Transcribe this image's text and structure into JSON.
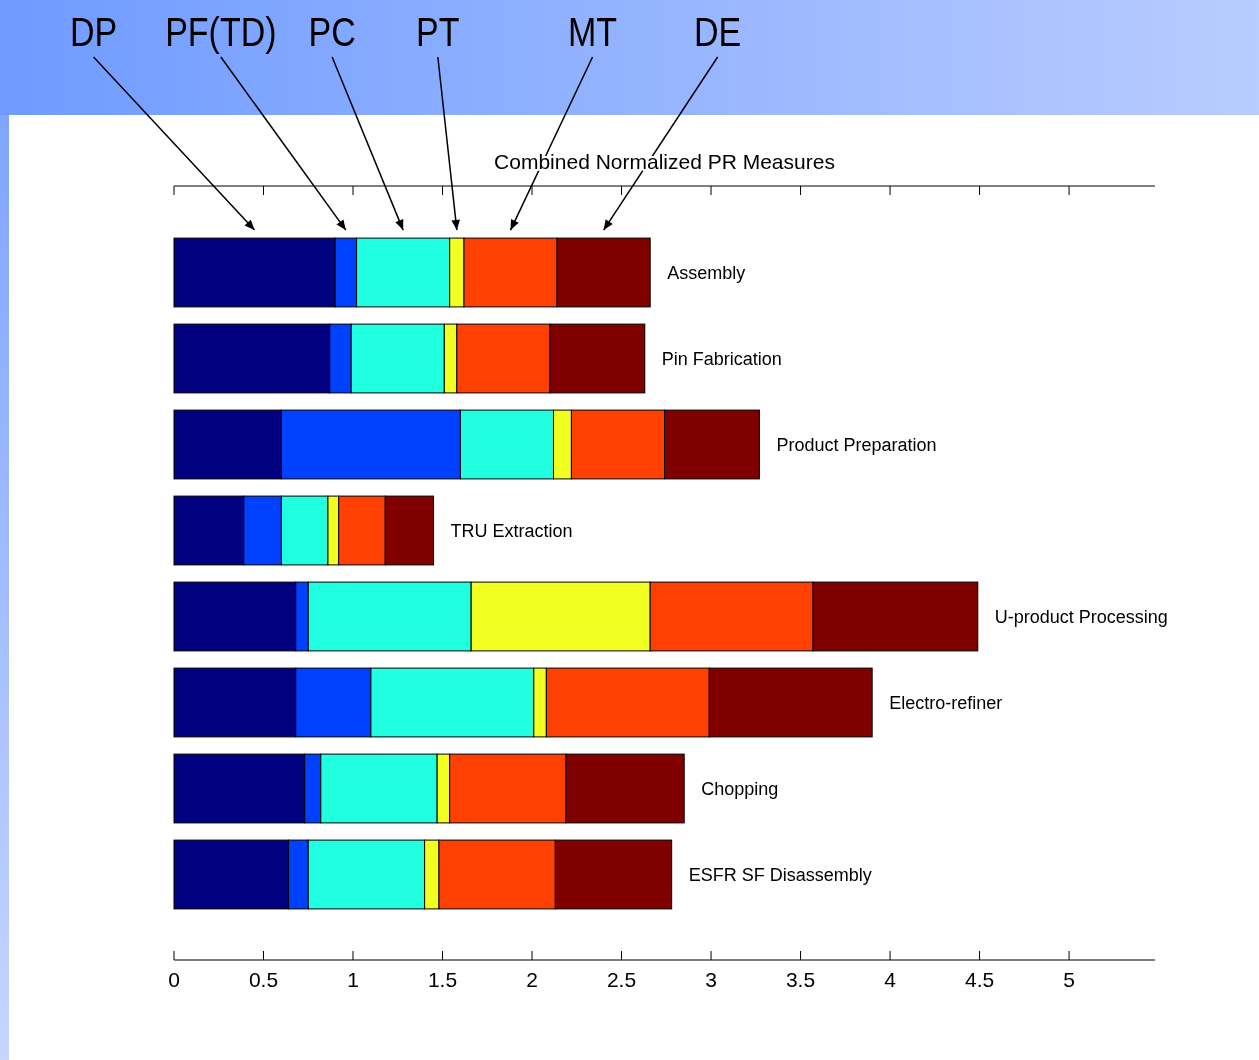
{
  "chart_data": {
    "type": "bar",
    "orientation": "horizontal",
    "stacked": true,
    "title": "Combined Normalized PR Measures",
    "legend": "top",
    "categories": [
      "Assembly",
      "Pin Fabrication",
      "Product Preparation",
      "TRU Extraction",
      "U-product Processing",
      "Electro-refiner",
      "Chopping",
      "ESFR SF Disassembly"
    ],
    "series": [
      {
        "name": "DP",
        "color": "#000080",
        "values": [
          0.9,
          0.87,
          0.6,
          0.39,
          0.68,
          0.68,
          0.73,
          0.64
        ]
      },
      {
        "name": "PF(TD)",
        "color": "#0040ff",
        "values": [
          0.12,
          0.12,
          1.0,
          0.21,
          0.07,
          0.42,
          0.09,
          0.11
        ]
      },
      {
        "name": "PC",
        "color": "#20ffe0",
        "values": [
          0.52,
          0.52,
          0.52,
          0.26,
          0.91,
          0.91,
          0.65,
          0.65
        ]
      },
      {
        "name": "PT",
        "color": "#f0ff20",
        "values": [
          0.08,
          0.07,
          0.1,
          0.06,
          1.0,
          0.07,
          0.07,
          0.08
        ]
      },
      {
        "name": "MT",
        "color": "#ff4000",
        "values": [
          0.52,
          0.52,
          0.52,
          0.26,
          0.91,
          0.91,
          0.65,
          0.65
        ]
      },
      {
        "name": "DE",
        "color": "#800000",
        "values": [
          0.52,
          0.53,
          0.53,
          0.27,
          0.92,
          0.91,
          0.66,
          0.65
        ]
      }
    ],
    "xlim": [
      0,
      5.48
    ],
    "xticks": [
      0,
      0.5,
      1,
      1.5,
      2,
      2.5,
      3,
      3.5,
      4,
      4.5,
      5
    ]
  }
}
